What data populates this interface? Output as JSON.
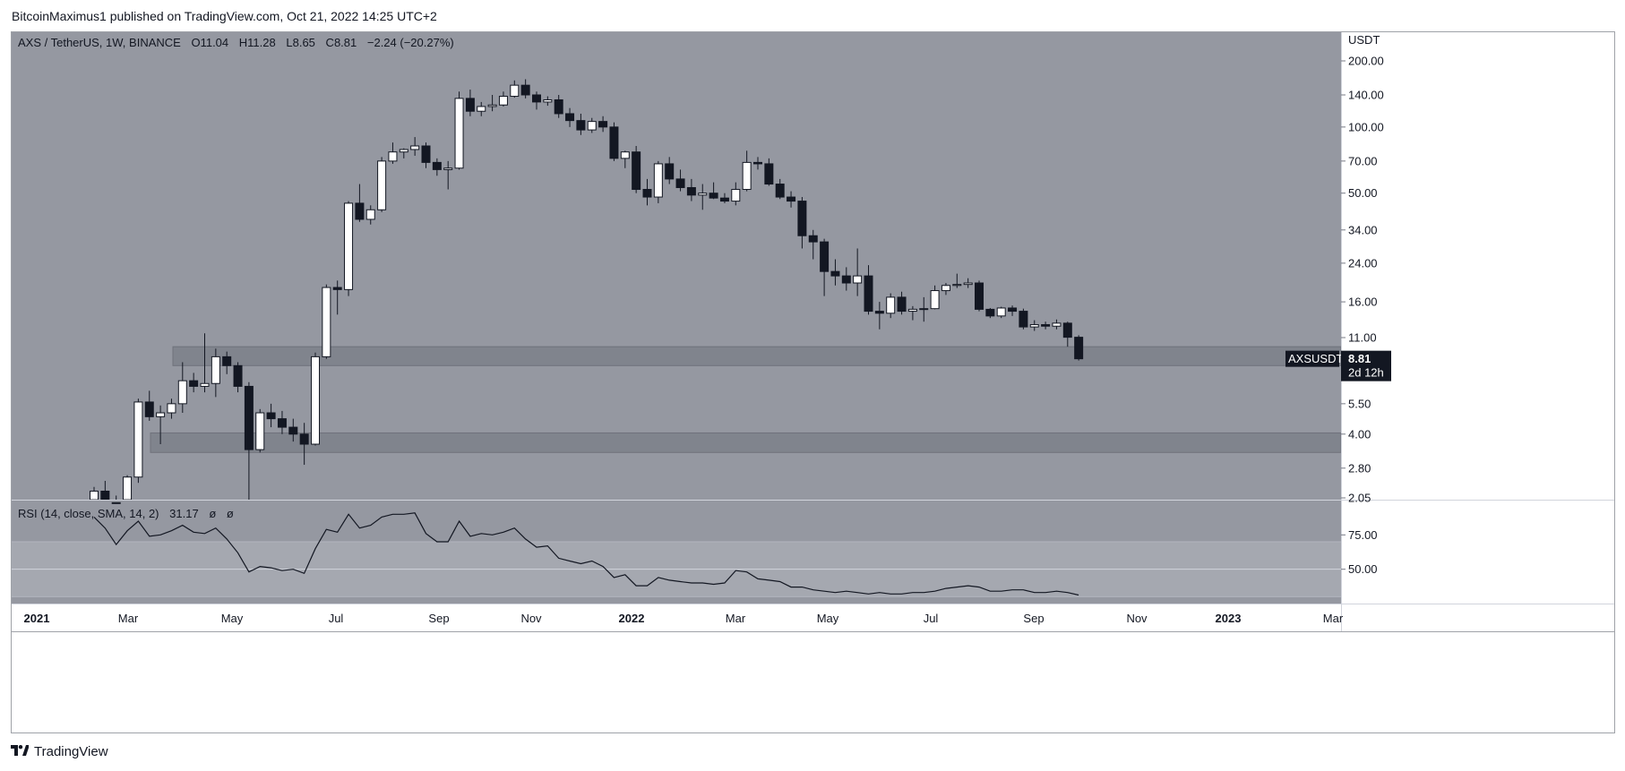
{
  "publisher": {
    "text": "BitcoinMaximus1 published on TradingView.com, Oct 21, 2022 14:25 UTC+2"
  },
  "legend": {
    "symbol": "AXS / TetherUS, 1W, BINANCE",
    "o_label": "O",
    "o_value": "11.04",
    "h_label": "H",
    "h_value": "11.28",
    "l_label": "L",
    "l_value": "8.65",
    "c_label": "C",
    "c_value": "8.81",
    "change": "−2.24 (−20.27%)"
  },
  "price_scale": {
    "currency": "USDT",
    "ticks": [
      "200.00",
      "140.00",
      "100.00",
      "70.00",
      "50.00",
      "34.00",
      "24.00",
      "16.00",
      "11.00",
      "5.50",
      "4.00",
      "2.80",
      "2.05"
    ]
  },
  "last_price": {
    "symbol": "AXSUSDT",
    "value": "8.81",
    "countdown": "2d 12h"
  },
  "rsi": {
    "label": "RSI (14, close, SMA, 14, 2)",
    "value": "31.17",
    "extra1": "ø",
    "extra2": "ø",
    "ticks": [
      "75.00",
      "50.00"
    ]
  },
  "time_axis": {
    "labels": [
      "2021",
      "Mar",
      "May",
      "Jul",
      "Sep",
      "Nov",
      "2022",
      "Mar",
      "May",
      "Jul",
      "Sep",
      "Nov",
      "2023",
      "Mar"
    ]
  },
  "footer": {
    "brand": "TradingView"
  },
  "colors": {
    "background": "#9598a1",
    "rsi_band": "#a5a8b0",
    "zone": "#7d808a",
    "candle_up": "#ffffff",
    "candle_down": "#131722",
    "label_bg": "#131722"
  },
  "chart_data": {
    "type": "candlestick",
    "scale": "log",
    "timeframe": "1W",
    "ylim": [
      2.05,
      200
    ],
    "support_zones": [
      [
        8.2,
        10.0
      ],
      [
        3.3,
        4.05
      ]
    ],
    "candles": [
      [
        1.9,
        2.3,
        1.8,
        2.2
      ],
      [
        2.2,
        2.45,
        1.9,
        1.95
      ],
      [
        1.95,
        2.1,
        1.7,
        1.8
      ],
      [
        1.8,
        2.6,
        1.78,
        2.55
      ],
      [
        2.55,
        5.8,
        2.4,
        5.6
      ],
      [
        5.6,
        6.3,
        4.6,
        4.8
      ],
      [
        4.8,
        5.4,
        3.6,
        5.0
      ],
      [
        5.0,
        5.8,
        4.7,
        5.5
      ],
      [
        5.5,
        8.5,
        5.0,
        7.0
      ],
      [
        7.0,
        7.6,
        6.2,
        6.6
      ],
      [
        6.6,
        11.5,
        6.2,
        6.8
      ],
      [
        6.8,
        9.8,
        5.9,
        9.0
      ],
      [
        9.0,
        9.5,
        7.5,
        8.2
      ],
      [
        8.2,
        8.5,
        6.2,
        6.6
      ],
      [
        6.6,
        6.9,
        1.9,
        3.4
      ],
      [
        3.4,
        5.2,
        3.3,
        5.0
      ],
      [
        5.0,
        5.5,
        4.3,
        4.7
      ],
      [
        4.7,
        5.1,
        4.0,
        4.3
      ],
      [
        4.3,
        4.7,
        3.7,
        4.0
      ],
      [
        4.0,
        4.5,
        2.9,
        3.6
      ],
      [
        3.6,
        9.4,
        3.55,
        9.0
      ],
      [
        9.0,
        19.2,
        8.8,
        18.6
      ],
      [
        18.6,
        20.0,
        14.0,
        18.2
      ],
      [
        18.2,
        46.0,
        17.0,
        45.0
      ],
      [
        45.0,
        55.0,
        37.0,
        38.0
      ],
      [
        38.0,
        44.0,
        36.0,
        42.0
      ],
      [
        42.0,
        73.0,
        41.0,
        70.0
      ],
      [
        70.0,
        85.0,
        68.0,
        77.0
      ],
      [
        77.0,
        80.0,
        72.0,
        79.0
      ],
      [
        79.0,
        90.0,
        74.0,
        82.0
      ],
      [
        82.0,
        85.0,
        65.0,
        69.0
      ],
      [
        69.0,
        72.0,
        60.0,
        64.0
      ],
      [
        64.0,
        70.0,
        52.0,
        65.0
      ],
      [
        65.0,
        145.0,
        64.0,
        135.0
      ],
      [
        135.0,
        148.0,
        112.0,
        118.0
      ],
      [
        118.0,
        130.0,
        112.0,
        124.0
      ],
      [
        124.0,
        140.0,
        118.0,
        126.0
      ],
      [
        126.0,
        145.0,
        124.0,
        138.0
      ],
      [
        138.0,
        163.0,
        136.0,
        155.0
      ],
      [
        155.0,
        165.0,
        135.0,
        140.0
      ],
      [
        140.0,
        145.0,
        120.0,
        130.0
      ],
      [
        130.0,
        138.0,
        125.0,
        133.0
      ],
      [
        133.0,
        140.0,
        110.0,
        115.0
      ],
      [
        115.0,
        122.0,
        100.0,
        107.0
      ],
      [
        107.0,
        115.0,
        92.0,
        97.0
      ],
      [
        97.0,
        110.0,
        94.0,
        106.0
      ],
      [
        106.0,
        112.0,
        95.0,
        100.0
      ],
      [
        100.0,
        105.0,
        70.0,
        72.0
      ],
      [
        72.0,
        78.0,
        65.0,
        77.0
      ],
      [
        77.0,
        82.0,
        50.0,
        52.0
      ],
      [
        52.0,
        58.0,
        44.0,
        48.0
      ],
      [
        48.0,
        70.0,
        45.0,
        68.0
      ],
      [
        68.0,
        73.0,
        55.0,
        58.0
      ],
      [
        58.0,
        64.0,
        51.0,
        53.0
      ],
      [
        53.0,
        58.0,
        46.0,
        49.0
      ],
      [
        49.0,
        55.0,
        42.0,
        50.0
      ],
      [
        50.0,
        56.0,
        47.0,
        47.5
      ],
      [
        47.5,
        50.0,
        45.0,
        46.0
      ],
      [
        46.0,
        56.0,
        44.0,
        52.0
      ],
      [
        52.0,
        78.0,
        51.0,
        69.0
      ],
      [
        69.0,
        73.0,
        64.0,
        68.0
      ],
      [
        68.0,
        72.0,
        54.0,
        55.0
      ],
      [
        55.0,
        58.0,
        47.0,
        48.0
      ],
      [
        48.0,
        51.0,
        43.0,
        46.0
      ],
      [
        46.0,
        48.0,
        28.0,
        32.0
      ],
      [
        32.0,
        34.0,
        25.0,
        30.0
      ],
      [
        30.0,
        31.0,
        17.0,
        22.0
      ],
      [
        22.0,
        25.0,
        19.0,
        21.0
      ],
      [
        21.0,
        23.0,
        18.0,
        19.5
      ],
      [
        19.5,
        28.0,
        17.0,
        21.0
      ],
      [
        21.0,
        23.5,
        14.0,
        14.5
      ],
      [
        14.5,
        16.0,
        12.0,
        14.2
      ],
      [
        14.2,
        17.5,
        13.5,
        16.8
      ],
      [
        16.8,
        17.8,
        14.0,
        14.5
      ],
      [
        14.5,
        15.3,
        13.2,
        14.8
      ],
      [
        14.8,
        16.8,
        13.0,
        14.9
      ],
      [
        14.9,
        19.0,
        14.8,
        18.0
      ],
      [
        18.0,
        19.5,
        17.2,
        19.0
      ],
      [
        19.0,
        21.5,
        18.5,
        19.2
      ],
      [
        19.2,
        20.5,
        18.5,
        19.5
      ],
      [
        19.5,
        20.0,
        14.5,
        14.8
      ],
      [
        14.8,
        15.0,
        13.5,
        13.8
      ],
      [
        13.8,
        15.2,
        13.5,
        15.0
      ],
      [
        15.0,
        15.4,
        13.8,
        14.5
      ],
      [
        14.5,
        14.9,
        12.0,
        12.3
      ],
      [
        12.3,
        13.2,
        11.8,
        12.6
      ],
      [
        12.6,
        13.0,
        12.0,
        12.4
      ],
      [
        12.4,
        13.3,
        12.0,
        12.8
      ],
      [
        12.8,
        13.0,
        10.0,
        11.04
      ],
      [
        11.04,
        11.28,
        8.65,
        8.81
      ]
    ],
    "rsi_series": [
      88,
      80,
      68,
      78,
      85,
      74,
      75,
      78,
      82,
      77,
      76,
      80,
      72,
      62,
      48,
      52,
      51,
      49,
      50,
      47,
      65,
      79,
      77,
      90,
      80,
      82,
      88,
      90,
      90,
      91,
      76,
      70,
      70,
      85,
      74,
      76,
      75,
      77,
      80,
      72,
      66,
      67,
      58,
      56,
      54,
      56,
      52,
      44,
      46,
      38,
      38,
      44,
      42,
      41,
      40,
      40,
      39,
      40,
      49,
      48,
      43,
      42,
      41,
      37,
      37,
      35,
      34,
      33,
      34,
      33,
      32,
      33,
      32,
      32,
      33,
      33,
      34,
      36,
      37,
      38,
      37,
      34,
      34,
      35,
      35,
      33,
      33,
      34,
      33,
      31.17
    ],
    "rsi_ylim": [
      25,
      100
    ],
    "rsi_band": [
      30,
      70
    ]
  }
}
